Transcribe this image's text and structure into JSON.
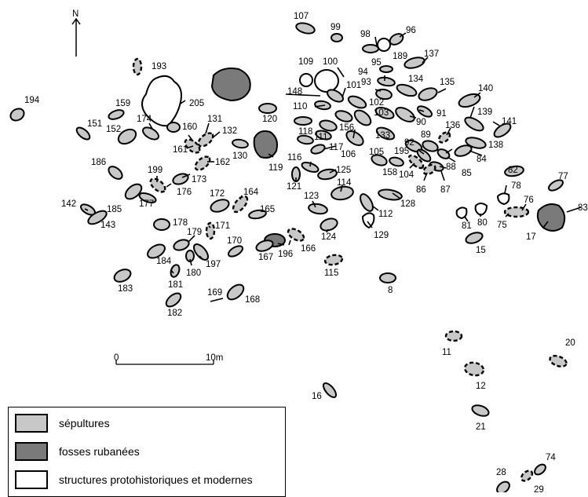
{
  "north_label": "N",
  "scale_bar": {
    "start_label": "0",
    "end_label": "10m"
  },
  "legend": {
    "items": [
      {
        "label": "sépultures",
        "fill": "#c8c8c8"
      },
      {
        "label": "fosses rubanées",
        "fill": "#7a7a7a"
      },
      {
        "label": "structures protohistoriques et modernes",
        "fill": "#ffffff"
      }
    ]
  },
  "colors": {
    "burial": "#c8c8c8",
    "pit": "#7a7a7a",
    "modern": "#ffffff",
    "outline": "#000000"
  },
  "feature_labels": [
    "107",
    "99",
    "98",
    "96",
    "189",
    "137",
    "95",
    "94",
    "93",
    "134",
    "135",
    "140",
    "109",
    "100",
    "148",
    "101",
    "102",
    "139",
    "110",
    "103",
    "91",
    "90",
    "133",
    "136",
    "141",
    "89",
    "92",
    "138",
    "84",
    "195",
    "88",
    "85",
    "105",
    "158",
    "104",
    "87",
    "86",
    "82",
    "117",
    "118",
    "111",
    "156",
    "106",
    "116",
    "125",
    "121",
    "114",
    "123",
    "112",
    "128",
    "129",
    "124",
    "120",
    "119",
    "130",
    "131",
    "132",
    "160",
    "161",
    "162",
    "193",
    "205",
    "194",
    "159",
    "151",
    "152",
    "174",
    "186",
    "199",
    "176",
    "173",
    "185",
    "177",
    "142",
    "143",
    "172",
    "164",
    "165",
    "171",
    "178",
    "179",
    "184",
    "180",
    "181",
    "183",
    "197",
    "170",
    "166",
    "196",
    "167",
    "115",
    "8",
    "169",
    "168",
    "182",
    "77",
    "78",
    "76",
    "75",
    "17",
    "83",
    "81",
    "80",
    "15",
    "11",
    "20",
    "12",
    "21",
    "16",
    "28",
    "74",
    "29"
  ]
}
